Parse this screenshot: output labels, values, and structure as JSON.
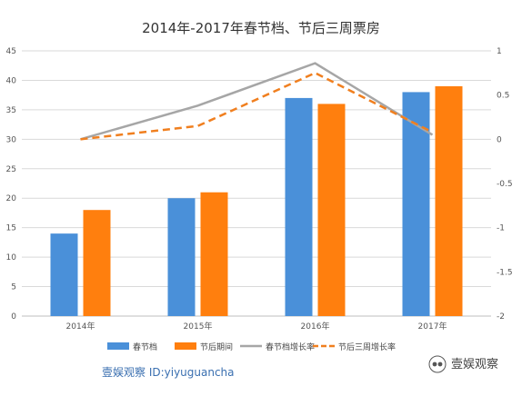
{
  "chart_data": {
    "type": "bar",
    "title": "2014年-2017年春节档、节后三周票房",
    "categories": [
      "2014年",
      "2015年",
      "2016年",
      "2017年"
    ],
    "ylim": [
      0,
      45
    ],
    "y_ticks": [
      "0",
      "5",
      "10",
      "15",
      "20",
      "25",
      "30",
      "35",
      "40",
      "45"
    ],
    "y2lim": [
      -2,
      1
    ],
    "y2_ticks": [
      "-2",
      "-1.5",
      "-1",
      "-0.5",
      "0",
      "0.5",
      "1"
    ],
    "grid": true,
    "legend_position": "bottom",
    "series": [
      {
        "name": "春节档",
        "type": "bar",
        "axis": "left",
        "color": "#4a90d9",
        "values": [
          14,
          20,
          37,
          38
        ]
      },
      {
        "name": "节后期间",
        "type": "bar",
        "axis": "left",
        "color": "#ff7f0e",
        "values": [
          18,
          21,
          36,
          39
        ]
      },
      {
        "name": "春节档增长率",
        "type": "line",
        "axis": "right",
        "color": "#a6a6a6",
        "dashed": false,
        "values": [
          0.0,
          0.38,
          0.86,
          0.05
        ]
      },
      {
        "name": "节后三周增长率",
        "type": "line",
        "axis": "right",
        "color": "#f07f1f",
        "dashed": true,
        "values": [
          0.0,
          0.15,
          0.75,
          0.08
        ]
      }
    ]
  },
  "watermark": {
    "left_text": "壹娱观察 ID:yiyuguancha",
    "right_text": "壹娱观察",
    "logo_icon": "wechat-account-icon"
  }
}
